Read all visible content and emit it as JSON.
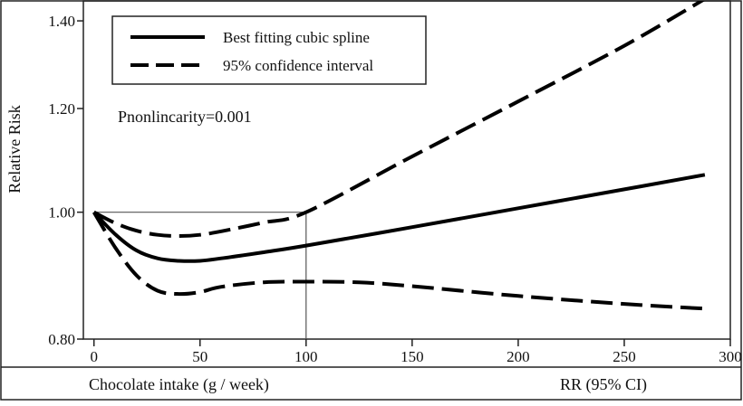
{
  "chart_data": {
    "type": "line",
    "title": "",
    "xlabel": "Chocolate intake (g / week)",
    "ylabel": "Relative Risk",
    "footer_right": "RR (95% CI)",
    "annotation": "Pnonlincarity=0.001",
    "xlim": [
      -5,
      300
    ],
    "ylim": [
      0.8,
      1.45
    ],
    "y_scale": "log",
    "x_ticks": [
      0,
      50,
      100,
      150,
      200,
      250,
      300
    ],
    "y_ticks": [
      0.8,
      1.0,
      1.2,
      1.4
    ],
    "y_tick_labels": [
      "0.80",
      "1.00",
      "1.20",
      "1.40"
    ],
    "reference": {
      "x": 100,
      "y": 1.0
    },
    "grid": false,
    "legend_position": "top-left",
    "series": [
      {
        "name": "Best fitting cubic spline",
        "style": "solid",
        "x": [
          0,
          10,
          20,
          30,
          40,
          50,
          60,
          80,
          100,
          150,
          200,
          250,
          288
        ],
        "y": [
          1.0,
          0.962,
          0.935,
          0.922,
          0.918,
          0.918,
          0.922,
          0.932,
          0.943,
          0.974,
          1.007,
          1.041,
          1.068
        ]
      },
      {
        "name": "95% confidence interval",
        "style": "dashed",
        "x": [
          0,
          10,
          20,
          30,
          40,
          50,
          60,
          80,
          100,
          150,
          200,
          250,
          288
        ],
        "y": [
          1.0,
          0.981,
          0.968,
          0.961,
          0.959,
          0.961,
          0.967,
          0.982,
          1.0,
          1.103,
          1.215,
          1.34,
          1.455
        ]
      },
      {
        "name": "",
        "style": "dashed",
        "x": [
          0,
          10,
          20,
          30,
          40,
          50,
          60,
          80,
          100,
          125,
          150,
          200,
          250,
          288
        ],
        "y": [
          1.0,
          0.94,
          0.895,
          0.871,
          0.866,
          0.869,
          0.877,
          0.884,
          0.885,
          0.884,
          0.878,
          0.863,
          0.851,
          0.844
        ]
      }
    ]
  }
}
